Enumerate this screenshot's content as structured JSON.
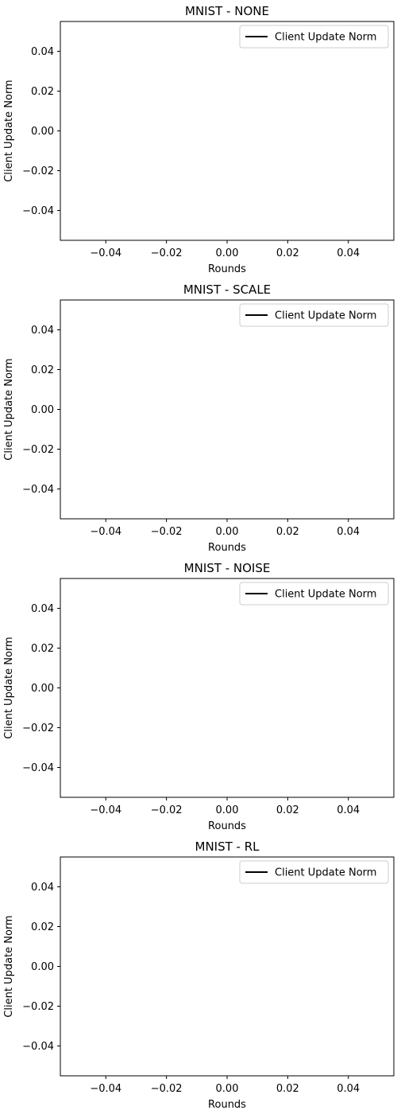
{
  "chart_data": [
    {
      "type": "line",
      "title": "MNIST - NONE",
      "xlabel": "Rounds",
      "ylabel": "Client Update Norm",
      "xlim": [
        -0.055,
        0.055
      ],
      "ylim": [
        -0.055,
        0.055
      ],
      "xticks": [
        -0.04,
        -0.02,
        0.0,
        0.02,
        0.04
      ],
      "yticks": [
        -0.04,
        -0.02,
        0.0,
        0.02,
        0.04
      ],
      "xtick_labels": [
        "−0.04",
        "−0.02",
        "0.00",
        "0.02",
        "0.04"
      ],
      "ytick_labels": [
        "−0.04",
        "−0.02",
        "0.00",
        "0.02",
        "0.04"
      ],
      "grid": false,
      "legend_position": "upper-right",
      "series": [
        {
          "name": "Client Update Norm",
          "color": "#000000",
          "x": [],
          "y": []
        }
      ]
    },
    {
      "type": "line",
      "title": "MNIST - SCALE",
      "xlabel": "Rounds",
      "ylabel": "Client Update Norm",
      "xlim": [
        -0.055,
        0.055
      ],
      "ylim": [
        -0.055,
        0.055
      ],
      "xticks": [
        -0.04,
        -0.02,
        0.0,
        0.02,
        0.04
      ],
      "yticks": [
        -0.04,
        -0.02,
        0.0,
        0.02,
        0.04
      ],
      "xtick_labels": [
        "−0.04",
        "−0.02",
        "0.00",
        "0.02",
        "0.04"
      ],
      "ytick_labels": [
        "−0.04",
        "−0.02",
        "0.00",
        "0.02",
        "0.04"
      ],
      "grid": false,
      "legend_position": "upper-right",
      "series": [
        {
          "name": "Client Update Norm",
          "color": "#000000",
          "x": [],
          "y": []
        }
      ]
    },
    {
      "type": "line",
      "title": "MNIST - NOISE",
      "xlabel": "Rounds",
      "ylabel": "Client Update Norm",
      "xlim": [
        -0.055,
        0.055
      ],
      "ylim": [
        -0.055,
        0.055
      ],
      "xticks": [
        -0.04,
        -0.02,
        0.0,
        0.02,
        0.04
      ],
      "yticks": [
        -0.04,
        -0.02,
        0.0,
        0.02,
        0.04
      ],
      "xtick_labels": [
        "−0.04",
        "−0.02",
        "0.00",
        "0.02",
        "0.04"
      ],
      "ytick_labels": [
        "−0.04",
        "−0.02",
        "0.00",
        "0.02",
        "0.04"
      ],
      "grid": false,
      "legend_position": "upper-right",
      "series": [
        {
          "name": "Client Update Norm",
          "color": "#000000",
          "x": [],
          "y": []
        }
      ]
    },
    {
      "type": "line",
      "title": "MNIST - RL",
      "xlabel": "Rounds",
      "ylabel": "Client Update Norm",
      "xlim": [
        -0.055,
        0.055
      ],
      "ylim": [
        -0.055,
        0.055
      ],
      "xticks": [
        -0.04,
        -0.02,
        0.0,
        0.02,
        0.04
      ],
      "yticks": [
        -0.04,
        -0.02,
        0.0,
        0.02,
        0.04
      ],
      "xtick_labels": [
        "−0.04",
        "−0.02",
        "0.00",
        "0.02",
        "0.04"
      ],
      "ytick_labels": [
        "−0.04",
        "−0.02",
        "0.00",
        "0.02",
        "0.04"
      ],
      "grid": false,
      "legend_position": "upper-right",
      "series": [
        {
          "name": "Client Update Norm",
          "color": "#000000",
          "x": [],
          "y": []
        }
      ]
    }
  ]
}
